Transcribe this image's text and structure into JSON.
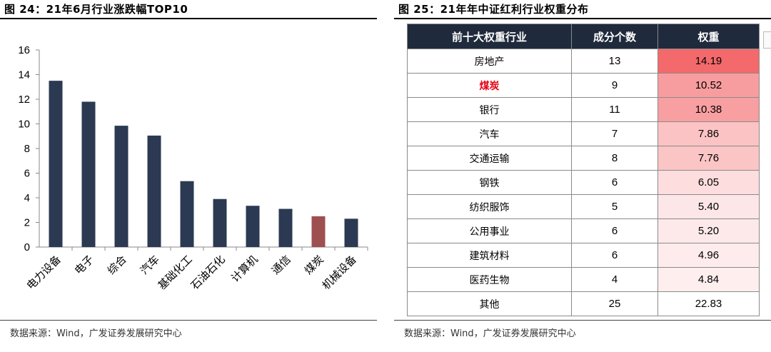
{
  "left_figure": {
    "title": "图 24：21年6月行业涨跌幅TOP10",
    "source": "数据来源：Wind，广发证券发展研究中心"
  },
  "right_figure": {
    "title": "图 25：21年年中证红利行业权重分布",
    "source": "数据来源：Wind，广发证券发展研究中心",
    "columns": [
      "前十大权重行业",
      "成分个数",
      "权重"
    ],
    "rows": [
      {
        "industry": "房地产",
        "count": "13",
        "weight": "14.19",
        "highlight": false
      },
      {
        "industry": "煤炭",
        "count": "9",
        "weight": "10.52",
        "highlight": true
      },
      {
        "industry": "银行",
        "count": "11",
        "weight": "10.38",
        "highlight": false
      },
      {
        "industry": "汽车",
        "count": "7",
        "weight": "7.86",
        "highlight": false
      },
      {
        "industry": "交通运输",
        "count": "8",
        "weight": "7.76",
        "highlight": false
      },
      {
        "industry": "钢铁",
        "count": "6",
        "weight": "6.05",
        "highlight": false
      },
      {
        "industry": "纺织服饰",
        "count": "5",
        "weight": "5.40",
        "highlight": false
      },
      {
        "industry": "公用事业",
        "count": "6",
        "weight": "5.20",
        "highlight": false
      },
      {
        "industry": "建筑材料",
        "count": "6",
        "weight": "4.96",
        "highlight": false
      },
      {
        "industry": "医药生物",
        "count": "4",
        "weight": "4.84",
        "highlight": false
      },
      {
        "industry": "其他",
        "count": "25",
        "weight": "22.83",
        "highlight": false
      }
    ],
    "colors": {
      "header_bg": "#1f2a3c",
      "highlight_text": "#e60012",
      "heat_max": "#f4696b"
    }
  },
  "chart_data": {
    "type": "bar",
    "categories": [
      "电力设备",
      "电子",
      "综合",
      "汽车",
      "基础化工",
      "石油石化",
      "计算机",
      "通信",
      "煤炭",
      "机械设备"
    ],
    "values": [
      13.5,
      11.8,
      9.85,
      9.05,
      5.35,
      3.9,
      3.35,
      3.1,
      2.5,
      2.3
    ],
    "highlight_index": 8,
    "colors": {
      "bar": "#2b3a52",
      "highlight": "#9e4f4f"
    },
    "ylim": [
      0,
      16
    ],
    "yticks": [
      0,
      2,
      4,
      6,
      8,
      10,
      12,
      14,
      16
    ],
    "grid": false
  }
}
